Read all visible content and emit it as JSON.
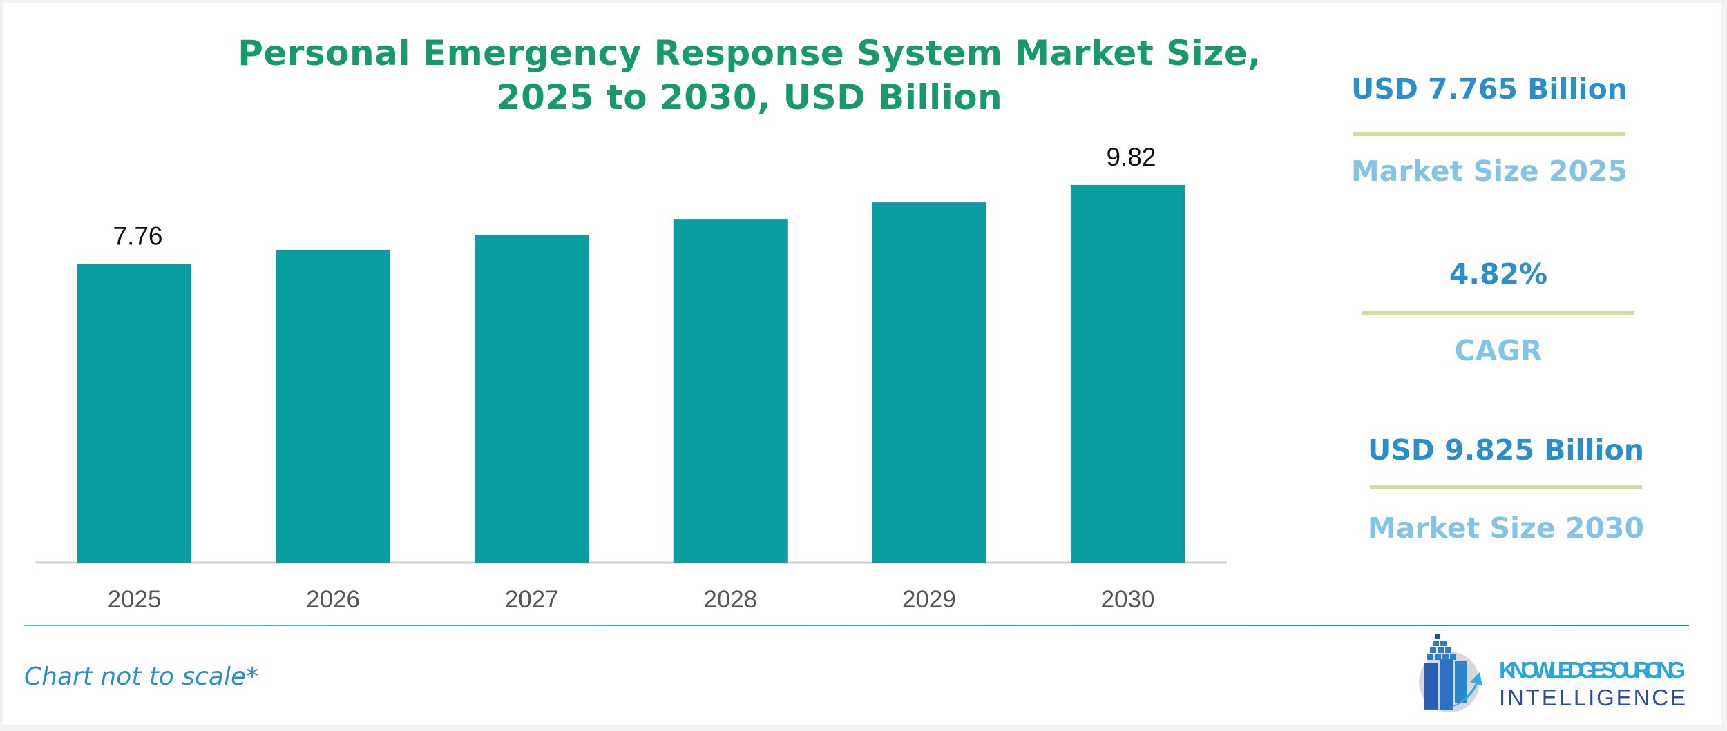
{
  "chart_data": {
    "type": "bar",
    "title": "Personal Emergency Response System Market Size, 2025 to 2030, USD Billion",
    "title_lines": [
      "Personal Emergency Response System Market Size,",
      "2025 to 2030, USD Billion"
    ],
    "categories": [
      "2025",
      "2026",
      "2027",
      "2028",
      "2029",
      "2030"
    ],
    "values": [
      7.765,
      8.139,
      8.531,
      8.943,
      9.374,
      9.825
    ],
    "data_labels": [
      "7.76",
      "",
      "",
      "",
      "",
      "9.82"
    ],
    "xlabel": "",
    "ylabel": "",
    "ylim": [
      0,
      9.825
    ],
    "grid": false,
    "bar_color": "#0a9ea1"
  },
  "stats": [
    {
      "value": "USD 7.765 Billion",
      "label": "Market Size 2025"
    },
    {
      "value": "4.82%",
      "label": "CAGR"
    },
    {
      "value": "USD 9.825 Billion",
      "label": "Market Size 2030"
    }
  ],
  "footer": {
    "note": "Chart not to scale*",
    "logo_text_1": "KNOWLEDGE SOURCING",
    "logo_text_2": "INTELLIGENCE"
  },
  "colors": {
    "title": "#17996b",
    "stat_value": "#2a8fc8",
    "stat_label": "#82c3e6",
    "rule": "#d3dc9c"
  }
}
